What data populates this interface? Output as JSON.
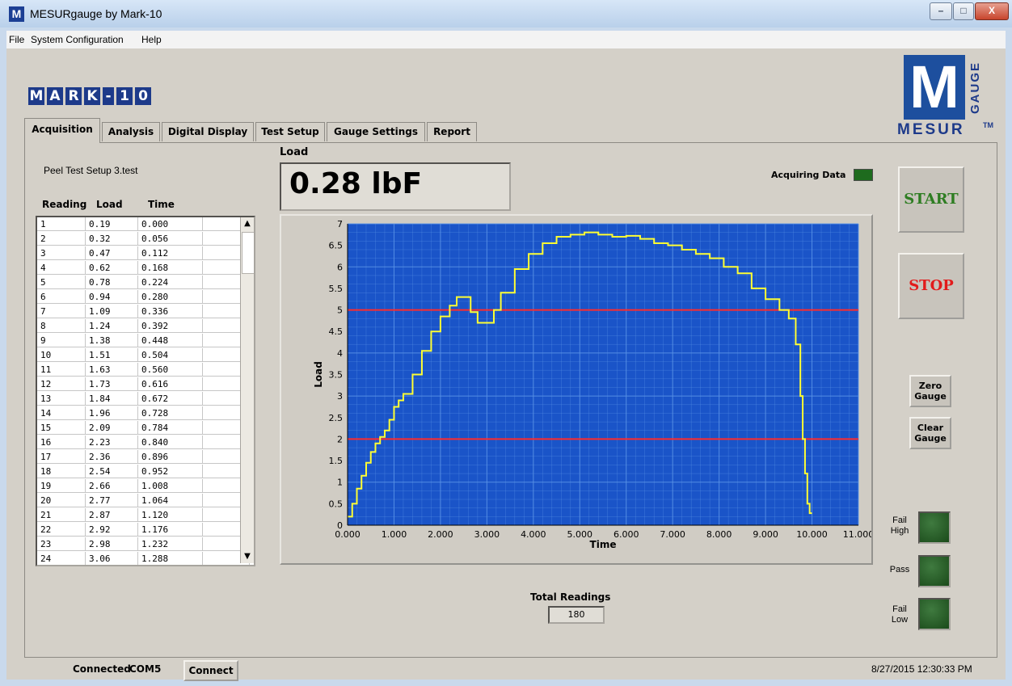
{
  "window": {
    "title": "MESURgauge by Mark-10"
  },
  "menu": [
    "File",
    "System Configuration",
    "Help"
  ],
  "logos": {
    "left": [
      "M",
      "A",
      "R",
      "K",
      "-",
      "1",
      "0"
    ],
    "right_main": "M",
    "right_vertical": "GAUGE",
    "right_bottom": "MESUR",
    "right_tm": "TM"
  },
  "tabs": [
    "Acquisition",
    "Analysis",
    "Digital Display",
    "Test Setup",
    "Gauge Settings",
    "Report"
  ],
  "acquisition": {
    "file_name": "Peel Test Setup 3.test",
    "columns": [
      "Reading",
      "Load",
      "Time"
    ],
    "rows": [
      [
        "1",
        "0.19",
        "0.000"
      ],
      [
        "2",
        "0.32",
        "0.056"
      ],
      [
        "3",
        "0.47",
        "0.112"
      ],
      [
        "4",
        "0.62",
        "0.168"
      ],
      [
        "5",
        "0.78",
        "0.224"
      ],
      [
        "6",
        "0.94",
        "0.280"
      ],
      [
        "7",
        "1.09",
        "0.336"
      ],
      [
        "8",
        "1.24",
        "0.392"
      ],
      [
        "9",
        "1.38",
        "0.448"
      ],
      [
        "10",
        "1.51",
        "0.504"
      ],
      [
        "11",
        "1.63",
        "0.560"
      ],
      [
        "12",
        "1.73",
        "0.616"
      ],
      [
        "13",
        "1.84",
        "0.672"
      ],
      [
        "14",
        "1.96",
        "0.728"
      ],
      [
        "15",
        "2.09",
        "0.784"
      ],
      [
        "16",
        "2.23",
        "0.840"
      ],
      [
        "17",
        "2.36",
        "0.896"
      ],
      [
        "18",
        "2.54",
        "0.952"
      ],
      [
        "19",
        "2.66",
        "1.008"
      ],
      [
        "20",
        "2.77",
        "1.064"
      ],
      [
        "21",
        "2.87",
        "1.120"
      ],
      [
        "22",
        "2.92",
        "1.176"
      ],
      [
        "23",
        "2.98",
        "1.232"
      ],
      [
        "24",
        "3.06",
        "1.288"
      ]
    ],
    "load_label": "Load",
    "load_value": "0.28 lbF",
    "acquiring_label": "Acquiring Data",
    "total_label": "Total Readings",
    "total_value": "180"
  },
  "controls": {
    "start": "START",
    "stop": "STOP",
    "zero": "Zero\nGauge",
    "clear": "Clear\nGauge",
    "fail_high": "Fail\nHigh",
    "pass": "Pass",
    "fail_low": "Fail\nLow"
  },
  "chart_data": {
    "type": "line",
    "xlabel": "Time",
    "ylabel": "Load",
    "xlim": [
      0,
      11
    ],
    "ylim": [
      0,
      7
    ],
    "xticks": [
      "0.000",
      "1.000",
      "2.000",
      "3.000",
      "4.000",
      "5.000",
      "6.000",
      "7.000",
      "8.000",
      "9.000",
      "10.000",
      "11.000"
    ],
    "yticks": [
      "0",
      "0.5",
      "1",
      "1.5",
      "2",
      "2.5",
      "3",
      "3.5",
      "4",
      "4.5",
      "5",
      "5.5",
      "6",
      "6.5",
      "7"
    ],
    "limits": [
      5,
      2
    ],
    "background": "#1a54c8",
    "grid_color": "#5a93e6",
    "line_color": "#ffff33",
    "limit_color": "#ff2b2b",
    "x": [
      0,
      0.1,
      0.2,
      0.3,
      0.4,
      0.5,
      0.6,
      0.7,
      0.8,
      0.9,
      1.0,
      1.1,
      1.2,
      1.4,
      1.6,
      1.8,
      2.0,
      2.2,
      2.35,
      2.5,
      2.65,
      2.8,
      3.0,
      3.15,
      3.3,
      3.6,
      3.9,
      4.2,
      4.5,
      4.8,
      5.1,
      5.4,
      5.7,
      6.0,
      6.3,
      6.6,
      6.9,
      7.2,
      7.5,
      7.8,
      8.1,
      8.4,
      8.7,
      9.0,
      9.3,
      9.5,
      9.65,
      9.75,
      9.8,
      9.85,
      9.9,
      9.95,
      10.0
    ],
    "y": [
      0.2,
      0.5,
      0.85,
      1.15,
      1.45,
      1.7,
      1.9,
      2.05,
      2.2,
      2.45,
      2.75,
      2.9,
      3.05,
      3.5,
      4.05,
      4.5,
      4.85,
      5.1,
      5.3,
      5.3,
      4.95,
      4.7,
      4.7,
      5.0,
      5.4,
      5.95,
      6.3,
      6.55,
      6.7,
      6.75,
      6.8,
      6.75,
      6.7,
      6.72,
      6.65,
      6.55,
      6.5,
      6.4,
      6.3,
      6.2,
      6.0,
      5.85,
      5.5,
      5.25,
      5.0,
      4.8,
      4.2,
      3.0,
      2.0,
      1.2,
      0.5,
      0.28,
      0.28
    ]
  },
  "status": {
    "connected": "Connected",
    "port": "COM5",
    "connect": "Connect",
    "datetime": "8/27/2015 12:30:33 PM"
  }
}
